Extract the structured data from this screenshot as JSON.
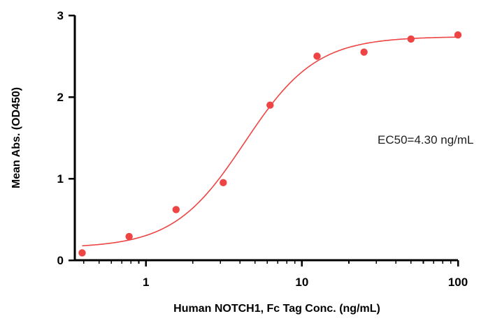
{
  "chart_data": {
    "type": "scatter",
    "title": "",
    "xlabel": "Human NOTCH1, Fc Tag Conc. (ng/mL)",
    "ylabel": "Mean Abs. (OD450)",
    "x_scale": "log",
    "xlim": [
      0.35,
      100
    ],
    "ylim": [
      0,
      3
    ],
    "x_ticks": [
      1,
      10,
      100
    ],
    "x_tick_labels": [
      "1",
      "10",
      "100"
    ],
    "y_ticks": [
      0,
      1,
      2,
      3
    ],
    "y_tick_labels": [
      "0",
      "1",
      "2",
      "3"
    ],
    "grid": false,
    "legend": "none",
    "color": "#ee4444",
    "series": [
      {
        "x": [
          0.39,
          0.78,
          1.56,
          3.13,
          6.25,
          12.5,
          25,
          50,
          100
        ],
        "y": [
          0.09,
          0.29,
          0.62,
          0.95,
          1.9,
          2.5,
          2.55,
          2.71,
          2.76
        ]
      }
    ],
    "fit": {
      "bottom": 0.15,
      "top": 2.74,
      "ec50": 4.3,
      "hill": 1.9
    },
    "annotations": [
      {
        "text": "EC50=4.30 ng/mL"
      }
    ]
  }
}
